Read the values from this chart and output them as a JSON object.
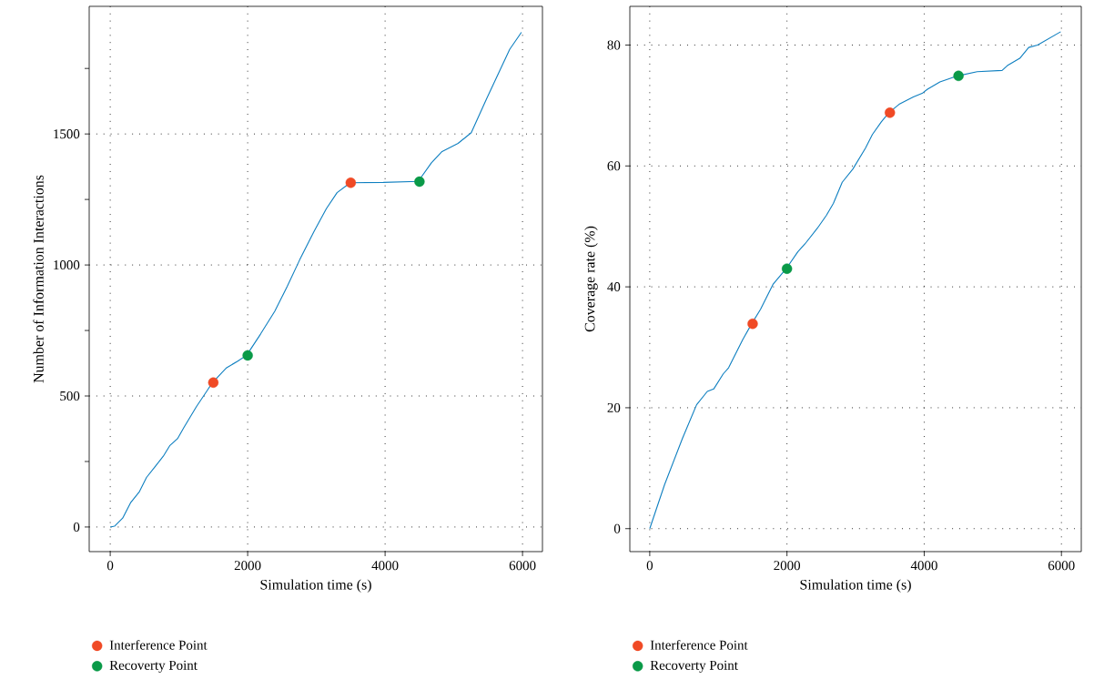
{
  "chart_data": [
    {
      "type": "line",
      "xlabel": "Simulation time (s)",
      "ylabel": "Number of Information Interactions",
      "xlim": [
        -306,
        6290
      ],
      "ylim": [
        -94,
        1987
      ],
      "xticks": [
        0,
        2000,
        4000,
        6000
      ],
      "yticks": [
        0,
        {
          "value": 250,
          "label": null
        },
        500,
        {
          "value": 750,
          "label": null
        },
        1000,
        {
          "value": 1250,
          "label": null
        },
        1500,
        {
          "value": 1750,
          "label": null
        }
      ],
      "grid": true,
      "legend": "bottom",
      "series": [
        {
          "color": "#0e7fc0",
          "x": [
            0,
            62,
            181,
            295,
            425,
            528,
            658,
            772,
            865,
            979,
            1073,
            1254,
            1409,
            1487,
            1694,
            1850,
            1984,
            2187,
            2394,
            2575,
            2756,
            2964,
            3145,
            3301,
            3493,
            3974,
            4482,
            4674,
            4829,
            5062,
            5254,
            5477,
            5813,
            5984
          ],
          "values": [
            0,
            3,
            34,
            92,
            135,
            189,
            232,
            270,
            310,
            337,
            380,
            459,
            520,
            551,
            608,
            632,
            655,
            736,
            823,
            918,
            1019,
            1127,
            1215,
            1276,
            1314,
            1315,
            1319,
            1390,
            1433,
            1464,
            1505,
            1634,
            1823,
            1888
          ]
        },
        {
          "type": "scatter",
          "name": "Interference Point",
          "color": "#f04a25",
          "marker": "circle",
          "x": [
            1500,
            3500
          ],
          "values": [
            551,
            1314
          ]
        },
        {
          "type": "scatter",
          "name": "Recoverty Point",
          "color": "#0a9a48",
          "marker": "circle",
          "x": [
            2000,
            4500
          ],
          "values": [
            655,
            1318
          ]
        }
      ]
    },
    {
      "type": "line",
      "xlabel": "Simulation time (s)",
      "ylabel": "Coverage rate (%)",
      "xlim": [
        -290,
        6289
      ],
      "ylim": [
        -3.8,
        86.4
      ],
      "xticks": [
        0,
        2000,
        4000,
        6000
      ],
      "yticks": [
        0,
        20,
        40,
        60,
        80
      ],
      "grid": true,
      "legend": "bottom",
      "series": [
        {
          "color": "#0e7fc0",
          "x": [
            0,
            217,
            476,
            683,
            839,
            932,
            1071,
            1149,
            1356,
            1486,
            1615,
            1796,
            1988,
            2158,
            2262,
            2443,
            2573,
            2676,
            2805,
            2961,
            3142,
            3245,
            3375,
            3484,
            3634,
            3841,
            3970,
            4048,
            4229,
            4488,
            4772,
            5135,
            5212,
            5393,
            5523,
            5652,
            5989
          ],
          "values": [
            0,
            7.3,
            14.9,
            20.5,
            22.7,
            23.1,
            25.6,
            26.6,
            31.3,
            33.9,
            36.3,
            40.4,
            43.0,
            45.8,
            47.1,
            49.7,
            51.8,
            53.8,
            57.3,
            59.5,
            62.9,
            65.2,
            67.3,
            68.8,
            70.2,
            71.4,
            72.0,
            72.7,
            73.9,
            74.9,
            75.6,
            75.8,
            76.6,
            77.8,
            79.6,
            80.0,
            82.2
          ]
        },
        {
          "type": "scatter",
          "name": "Interference Point",
          "color": "#f04a25",
          "marker": "circle",
          "x": [
            1500,
            3500
          ],
          "values": [
            33.9,
            68.8
          ]
        },
        {
          "type": "scatter",
          "name": "Recoverty Point",
          "color": "#0a9a48",
          "marker": "circle",
          "x": [
            2000,
            4500
          ],
          "values": [
            43.0,
            74.9
          ]
        }
      ]
    }
  ]
}
